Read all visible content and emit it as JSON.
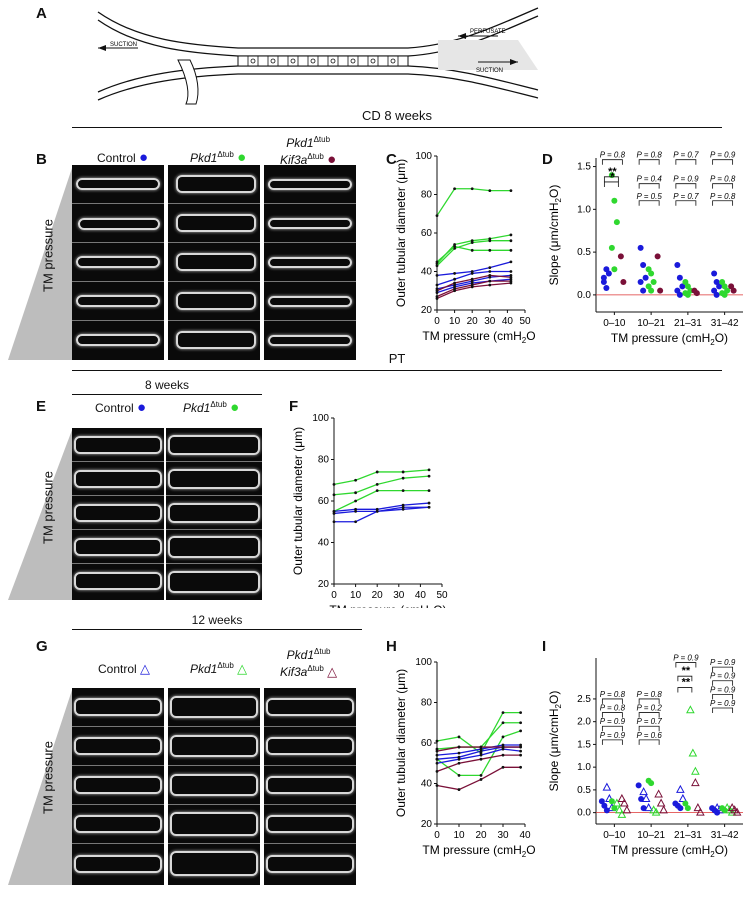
{
  "panel_letters": {
    "a": "A",
    "b": "B",
    "c": "C",
    "d": "D",
    "e": "E",
    "f": "F",
    "g": "G",
    "h": "H",
    "i": "I"
  },
  "schematic": {
    "suction_left": "SUCTION",
    "perfusate": "PERFUSATE",
    "suction_right": "SUCTION"
  },
  "sections": {
    "cd": "CD 8 weeks",
    "pt": "PT",
    "pt_age": "8 weeks",
    "g_age": "12 weeks"
  },
  "group_headers": {
    "control": "Control",
    "pkd1": "Pkd1",
    "pkd1_sup": "Δtub",
    "kif3a": "Kif3a",
    "kif3a_sup": "Δtub"
  },
  "tm_pressure_label": "TM pressure",
  "colors": {
    "control": "#1a1adb",
    "pkd1": "#2fd82f",
    "double": "#7a1038",
    "black": "#111111"
  },
  "chart_data": [
    {
      "id": "C",
      "type": "line",
      "xlabel": "TM pressure (cmH2O)",
      "ylabel": "Outer tubular diameter (μm)",
      "xlim": [
        0,
        50
      ],
      "ylim": [
        20,
        100
      ],
      "xticks": [
        0,
        10,
        20,
        30,
        40,
        50
      ],
      "yticks": [
        20,
        40,
        60,
        80,
        100
      ],
      "series": [
        {
          "group": "pkd1",
          "x": [
            0,
            10,
            20,
            30,
            42
          ],
          "y": [
            69,
            83,
            83,
            82,
            82
          ]
        },
        {
          "group": "pkd1",
          "x": [
            0,
            10,
            20,
            30,
            42
          ],
          "y": [
            44,
            54,
            56,
            57,
            59
          ]
        },
        {
          "group": "pkd1",
          "x": [
            0,
            10,
            20,
            30,
            42
          ],
          "y": [
            43,
            52,
            55,
            56,
            56
          ]
        },
        {
          "group": "pkd1",
          "x": [
            0,
            10,
            20,
            30,
            42
          ],
          "y": [
            45,
            53,
            51,
            51,
            51
          ]
        },
        {
          "group": "control",
          "x": [
            0,
            10,
            20,
            30,
            42
          ],
          "y": [
            38,
            39,
            40,
            42,
            45
          ]
        },
        {
          "group": "control",
          "x": [
            0,
            10,
            20,
            30,
            42
          ],
          "y": [
            33,
            36,
            39,
            40,
            40
          ]
        },
        {
          "group": "control",
          "x": [
            0,
            10,
            20,
            30,
            42
          ],
          "y": [
            31,
            33,
            35,
            37,
            38
          ]
        },
        {
          "group": "control",
          "x": [
            0,
            10,
            20,
            30,
            42
          ],
          "y": [
            29,
            32,
            34,
            35,
            36
          ]
        },
        {
          "group": "double",
          "x": [
            0,
            10,
            20,
            30,
            42
          ],
          "y": [
            30,
            34,
            36,
            38,
            37
          ]
        },
        {
          "group": "double",
          "x": [
            0,
            10,
            20,
            30,
            42
          ],
          "y": [
            27,
            31,
            33,
            35,
            35
          ]
        },
        {
          "group": "double",
          "x": [
            0,
            10,
            20,
            30,
            42
          ],
          "y": [
            26,
            30,
            32,
            33,
            34
          ]
        }
      ]
    },
    {
      "id": "D",
      "type": "scatter",
      "xlabel": "TM pressure (cmH2O)",
      "ylabel": "Slope (μm/cmH2O)",
      "categories": [
        "0–10",
        "10–21",
        "21–31",
        "31–42"
      ],
      "ylim": [
        -0.2,
        1.6
      ],
      "yticks": [
        0.0,
        0.5,
        1.0,
        1.5
      ],
      "points": {
        "control": [
          [
            0.2,
            0.3,
            0.25,
            0.15,
            0.08
          ],
          [
            0.55,
            0.35,
            0.2,
            0.15,
            0.05
          ],
          [
            0.35,
            0.2,
            0.1,
            0.05,
            0.0
          ],
          [
            0.25,
            0.15,
            0.1,
            0.05,
            0.0
          ]
        ],
        "pkd1": [
          [
            1.4,
            1.1,
            0.85,
            0.55,
            0.3
          ],
          [
            0.3,
            0.25,
            0.15,
            0.1,
            0.05
          ],
          [
            0.15,
            0.1,
            0.05,
            0.02,
            0.0
          ],
          [
            0.15,
            0.1,
            0.05,
            0.02,
            0.0
          ]
        ],
        "double": [
          [
            0.45,
            0.15
          ],
          [
            0.45,
            0.05
          ],
          [
            0.05,
            0.02
          ],
          [
            0.1,
            0.05
          ]
        ]
      },
      "annotations": [
        {
          "text": "P = 0.8",
          "cat": 0,
          "level": 1.58
        },
        {
          "text": "**",
          "cat": 0,
          "level": 1.38
        },
        {
          "text": "*",
          "cat": 0,
          "level": 1.32
        },
        {
          "text": "P = 0.8",
          "cat": 1,
          "level": 1.58
        },
        {
          "text": "P = 0.4",
          "cat": 1,
          "level": 1.3
        },
        {
          "text": "P = 0.5",
          "cat": 1,
          "level": 1.1
        },
        {
          "text": "P = 0.7",
          "cat": 2,
          "level": 1.58
        },
        {
          "text": "P = 0.9",
          "cat": 2,
          "level": 1.3
        },
        {
          "text": "P = 0.7",
          "cat": 2,
          "level": 1.1
        },
        {
          "text": "P = 0.9",
          "cat": 3,
          "level": 1.58
        },
        {
          "text": "P = 0.8",
          "cat": 3,
          "level": 1.3
        },
        {
          "text": "P = 0.8",
          "cat": 3,
          "level": 1.1
        }
      ]
    },
    {
      "id": "F",
      "type": "line",
      "xlabel": "TM pressure (cmH2O)",
      "ylabel": "Outer tubular diameter (μm)",
      "xlim": [
        0,
        50
      ],
      "ylim": [
        20,
        100
      ],
      "xticks": [
        0,
        10,
        20,
        30,
        40,
        50
      ],
      "yticks": [
        20,
        40,
        60,
        80,
        100
      ],
      "series": [
        {
          "group": "pkd1",
          "x": [
            0,
            10,
            20,
            32,
            44
          ],
          "y": [
            68,
            70,
            74,
            74,
            75
          ]
        },
        {
          "group": "pkd1",
          "x": [
            0,
            10,
            20,
            32,
            44
          ],
          "y": [
            63,
            64,
            68,
            71,
            72
          ]
        },
        {
          "group": "pkd1",
          "x": [
            0,
            10,
            20,
            32,
            44
          ],
          "y": [
            55,
            60,
            65,
            65,
            65
          ]
        },
        {
          "group": "control",
          "x": [
            0,
            10,
            20,
            32,
            44
          ],
          "y": [
            55,
            56,
            56,
            58,
            59
          ]
        },
        {
          "group": "control",
          "x": [
            0,
            10,
            20,
            32,
            44
          ],
          "y": [
            54,
            55,
            55,
            56,
            57
          ]
        },
        {
          "group": "control",
          "x": [
            0,
            10,
            20,
            32,
            44
          ],
          "y": [
            50,
            50,
            55,
            57,
            57
          ]
        }
      ]
    },
    {
      "id": "H",
      "type": "line",
      "xlabel": "TM pressure (cmH2O)",
      "ylabel": "Outer tubular diameter (μm)",
      "xlim": [
        0,
        40
      ],
      "ylim": [
        20,
        100
      ],
      "xticks": [
        0,
        10,
        20,
        30,
        40
      ],
      "yticks": [
        20,
        40,
        60,
        80,
        100
      ],
      "series": [
        {
          "group": "pkd1",
          "x": [
            0,
            10,
            20,
            30,
            38
          ],
          "y": [
            61,
            63,
            55,
            75,
            75
          ]
        },
        {
          "group": "pkd1",
          "x": [
            0,
            10,
            20,
            30,
            38
          ],
          "y": [
            57,
            58,
            58,
            70,
            70
          ]
        },
        {
          "group": "pkd1",
          "x": [
            0,
            10,
            20,
            30,
            38
          ],
          "y": [
            52,
            44,
            44,
            63,
            66
          ]
        },
        {
          "group": "control",
          "x": [
            0,
            10,
            20,
            30,
            38
          ],
          "y": [
            54,
            55,
            57,
            59,
            59
          ]
        },
        {
          "group": "control",
          "x": [
            0,
            10,
            20,
            30,
            38
          ],
          "y": [
            52,
            53,
            56,
            58,
            58
          ]
        },
        {
          "group": "control",
          "x": [
            0,
            10,
            20,
            30,
            38
          ],
          "y": [
            50,
            52,
            54,
            57,
            56
          ]
        },
        {
          "group": "double",
          "x": [
            0,
            10,
            20,
            30,
            38
          ],
          "y": [
            56,
            58,
            58,
            58,
            58
          ]
        },
        {
          "group": "double",
          "x": [
            0,
            10,
            20,
            30,
            38
          ],
          "y": [
            46,
            50,
            52,
            54,
            54
          ]
        },
        {
          "group": "double",
          "x": [
            0,
            10,
            20,
            30,
            38
          ],
          "y": [
            39,
            37,
            42,
            48,
            48
          ]
        }
      ]
    },
    {
      "id": "I",
      "type": "scatter",
      "xlabel": "TM pressure (cmH2O)",
      "ylabel": "Slope (μm/cmH2O)",
      "categories": [
        "0–10",
        "10–21",
        "21–31",
        "31–42"
      ],
      "ylim": [
        -0.25,
        3.4
      ],
      "yticks": [
        0.0,
        0.5,
        1.0,
        1.5,
        2.0,
        2.5
      ],
      "points": {
        "control_filled": [
          [
            0.25,
            0.15,
            0.05
          ],
          [
            0.6,
            0.3,
            0.1
          ],
          [
            0.2,
            0.15,
            0.1
          ],
          [
            0.1,
            0.05,
            0.0
          ]
        ],
        "control_open": [
          [
            0.55,
            0.3,
            0.1
          ],
          [
            0.45,
            0.3,
            0.1
          ],
          [
            0.5,
            0.3
          ],
          [
            0.1,
            0.05
          ]
        ],
        "pkd1_filled": [
          [
            0.25,
            0.1
          ],
          [
            0.7,
            0.65
          ],
          [
            0.2,
            0.1
          ],
          [
            0.1,
            0.05
          ]
        ],
        "pkd1_open": [
          [
            0.2,
            0.05,
            -0.05
          ],
          [
            0.05,
            0.0
          ],
          [
            2.25,
            1.3,
            0.9
          ],
          [
            0.1,
            0.05,
            0.0
          ]
        ],
        "double_open": [
          [
            0.3,
            0.2,
            0.05
          ],
          [
            0.4,
            0.2,
            0.05
          ],
          [
            0.65,
            0.1,
            0.0
          ],
          [
            0.1,
            0.05,
            0.0
          ]
        ]
      },
      "annotations": [
        {
          "text": "P = 0.8",
          "cat": 0,
          "level": 2.5
        },
        {
          "text": "P = 0.8",
          "cat": 0,
          "level": 2.2
        },
        {
          "text": "P = 0.9",
          "cat": 0,
          "level": 1.9
        },
        {
          "text": "P = 0.9",
          "cat": 0,
          "level": 1.6
        },
        {
          "text": "P = 0.8",
          "cat": 1,
          "level": 2.5
        },
        {
          "text": "P = 0.2",
          "cat": 1,
          "level": 2.2
        },
        {
          "text": "P = 0.7",
          "cat": 1,
          "level": 1.9
        },
        {
          "text": "P = 0.6",
          "cat": 1,
          "level": 1.6
        },
        {
          "text": "P = 0.9",
          "cat": 2,
          "level": 3.3
        },
        {
          "text": "**",
          "cat": 2,
          "level": 3.0
        },
        {
          "text": "**",
          "cat": 2,
          "level": 2.75
        },
        {
          "text": "P = 0.9",
          "cat": 3,
          "level": 3.2
        },
        {
          "text": "P = 0.9",
          "cat": 3,
          "level": 2.9
        },
        {
          "text": "P = 0.9",
          "cat": 3,
          "level": 2.6
        },
        {
          "text": "P = 0.9",
          "cat": 3,
          "level": 2.3
        }
      ]
    }
  ]
}
